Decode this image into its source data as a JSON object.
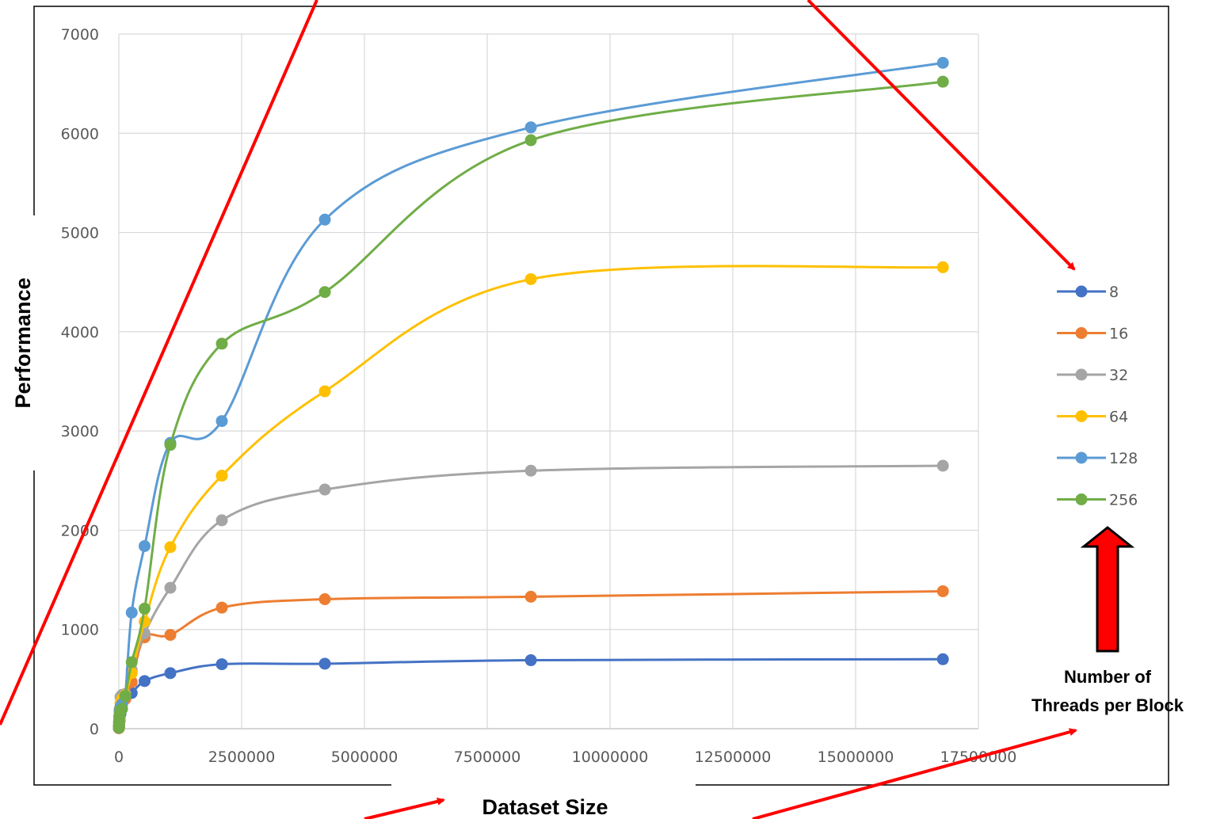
{
  "chart_data": {
    "type": "line",
    "xlabel": "Dataset Size",
    "ylabel": "Performance",
    "xlim": [
      0,
      17500000
    ],
    "ylim": [
      0,
      7000
    ],
    "x_ticks": [
      "0",
      "2500000",
      "5000000",
      "7500000",
      "10000000",
      "12500000",
      "15000000",
      "17500000"
    ],
    "y_ticks": [
      "0",
      "1000",
      "2000",
      "3000",
      "4000",
      "5000",
      "6000",
      "7000"
    ],
    "grid": true,
    "legend_title": "Number of Threads per Block",
    "legend_title_lines": [
      "Number of",
      "Threads per Block"
    ],
    "legend_position": "right",
    "x": [
      1024,
      2048,
      4096,
      8192,
      16384,
      32768,
      65536,
      131072,
      262144,
      524288,
      1048576,
      2097152,
      4194304,
      8388608,
      16777216
    ],
    "series": [
      {
        "name": "8",
        "color": "#4472C4",
        "values": [
          5,
          10,
          20,
          40,
          80,
          150,
          250,
          300,
          360,
          480,
          560,
          650,
          655,
          690,
          700
        ]
      },
      {
        "name": "16",
        "color": "#ED7D31",
        "values": [
          5,
          10,
          25,
          50,
          100,
          180,
          280,
          300,
          470,
          920,
          945,
          1220,
          1305,
          1330,
          1385
        ]
      },
      {
        "name": "32",
        "color": "#A5A5A5",
        "values": [
          10,
          25,
          50,
          100,
          180,
          320,
          340,
          350,
          590,
          960,
          1420,
          2100,
          2410,
          2600,
          2650
        ]
      },
      {
        "name": "64",
        "color": "#FFC000",
        "values": [
          10,
          30,
          60,
          110,
          200,
          260,
          300,
          340,
          560,
          1080,
          1830,
          2550,
          3400,
          4530,
          4650
        ]
      },
      {
        "name": "128",
        "color": "#5B9BD5",
        "values": [
          10,
          30,
          70,
          120,
          180,
          220,
          250,
          330,
          1170,
          1840,
          2880,
          3100,
          5130,
          6060,
          6710
        ]
      },
      {
        "name": "256",
        "color": "#70AD47",
        "values": [
          10,
          30,
          70,
          120,
          150,
          180,
          200,
          330,
          670,
          1210,
          2860,
          3880,
          4400,
          5930,
          6520
        ]
      }
    ],
    "annotations": {
      "arrow_color": "#FF0000"
    }
  }
}
